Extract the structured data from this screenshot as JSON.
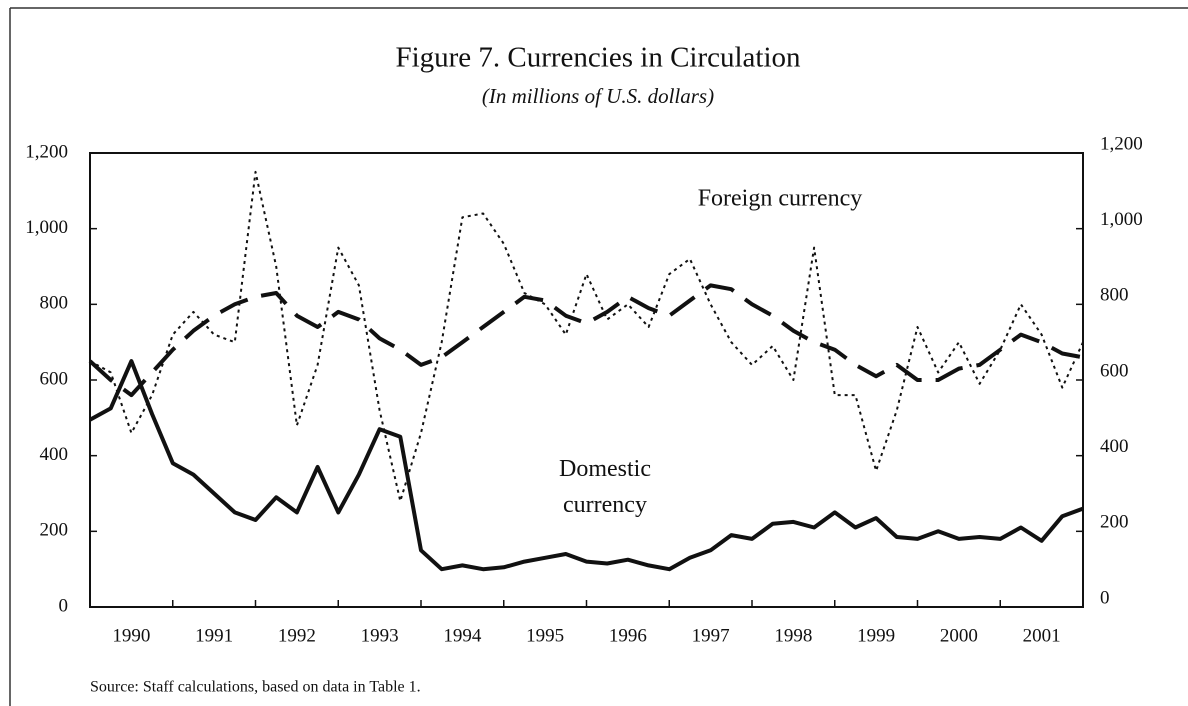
{
  "chart_data": {
    "type": "line",
    "title": "Figure 7. Currencies in Circulation",
    "subtitle": "(In millions of U.S. dollars)",
    "source": "Source: Staff calculations, based on data in Table 1.",
    "x": [
      1990,
      1990.25,
      1990.5,
      1990.75,
      1991,
      1991.25,
      1991.5,
      1991.75,
      1992,
      1992.25,
      1992.5,
      1992.75,
      1993,
      1993.25,
      1993.5,
      1993.75,
      1994,
      1994.25,
      1994.5,
      1994.75,
      1995,
      1995.25,
      1995.5,
      1995.75,
      1996,
      1996.25,
      1996.5,
      1996.75,
      1997,
      1997.25,
      1997.5,
      1997.75,
      1998,
      1998.25,
      1998.5,
      1998.75,
      1999,
      1999.25,
      1999.5,
      1999.75,
      2000,
      2000.25,
      2000.5,
      2000.75,
      2001,
      2001.25,
      2001.5,
      2001.75,
      2002
    ],
    "series": [
      {
        "name": "Foreign currency",
        "color": "#111111",
        "style": "dotted",
        "values": [
          650,
          620,
          460,
          560,
          720,
          780,
          720,
          700,
          1150,
          900,
          480,
          640,
          950,
          850,
          520,
          280,
          460,
          700,
          1030,
          1040,
          960,
          830,
          800,
          720,
          880,
          760,
          800,
          740,
          880,
          920,
          800,
          700,
          640,
          690,
          600,
          950,
          560,
          560,
          360,
          520,
          740,
          620,
          700,
          590,
          680,
          800,
          720,
          580,
          700
        ]
      },
      {
        "color": "#111111",
        "style": "dashed",
        "values": [
          650,
          600,
          560,
          620,
          680,
          730,
          770,
          800,
          820,
          830,
          770,
          740,
          780,
          760,
          710,
          680,
          640,
          660,
          700,
          740,
          780,
          820,
          810,
          770,
          750,
          780,
          820,
          790,
          770,
          810,
          850,
          840,
          800,
          770,
          730,
          700,
          680,
          640,
          610,
          640,
          600,
          600,
          630,
          640,
          680,
          720,
          700,
          670,
          660
        ]
      },
      {
        "name": "Domestic currency",
        "color": "#111111",
        "style": "solid",
        "values": [
          495,
          525,
          650,
          510,
          380,
          350,
          300,
          250,
          230,
          290,
          250,
          370,
          250,
          350,
          470,
          450,
          150,
          100,
          110,
          100,
          105,
          120,
          130,
          140,
          120,
          115,
          125,
          110,
          100,
          130,
          150,
          190,
          180,
          220,
          225,
          210,
          250,
          210,
          235,
          185,
          180,
          200,
          180,
          185,
          180,
          210,
          175,
          240,
          260
        ]
      }
    ],
    "xlim": [
      1990,
      2002
    ],
    "xticks": [
      1990,
      1991,
      1992,
      1993,
      1994,
      1995,
      1996,
      1997,
      1998,
      1999,
      2000,
      2001
    ],
    "ylim": [
      0,
      1200
    ],
    "yticks": [
      0,
      200,
      400,
      600,
      800,
      {
        "value": 1000,
        "label": "1,000"
      },
      {
        "value": 1200,
        "label": "1,200"
      }
    ],
    "y2lim": [
      0,
      1200
    ],
    "y2ticks": [
      0,
      200,
      400,
      600,
      800,
      {
        "value": 1000,
        "label": "1,000"
      },
      {
        "value": 1200,
        "label": "1,200"
      }
    ]
  }
}
